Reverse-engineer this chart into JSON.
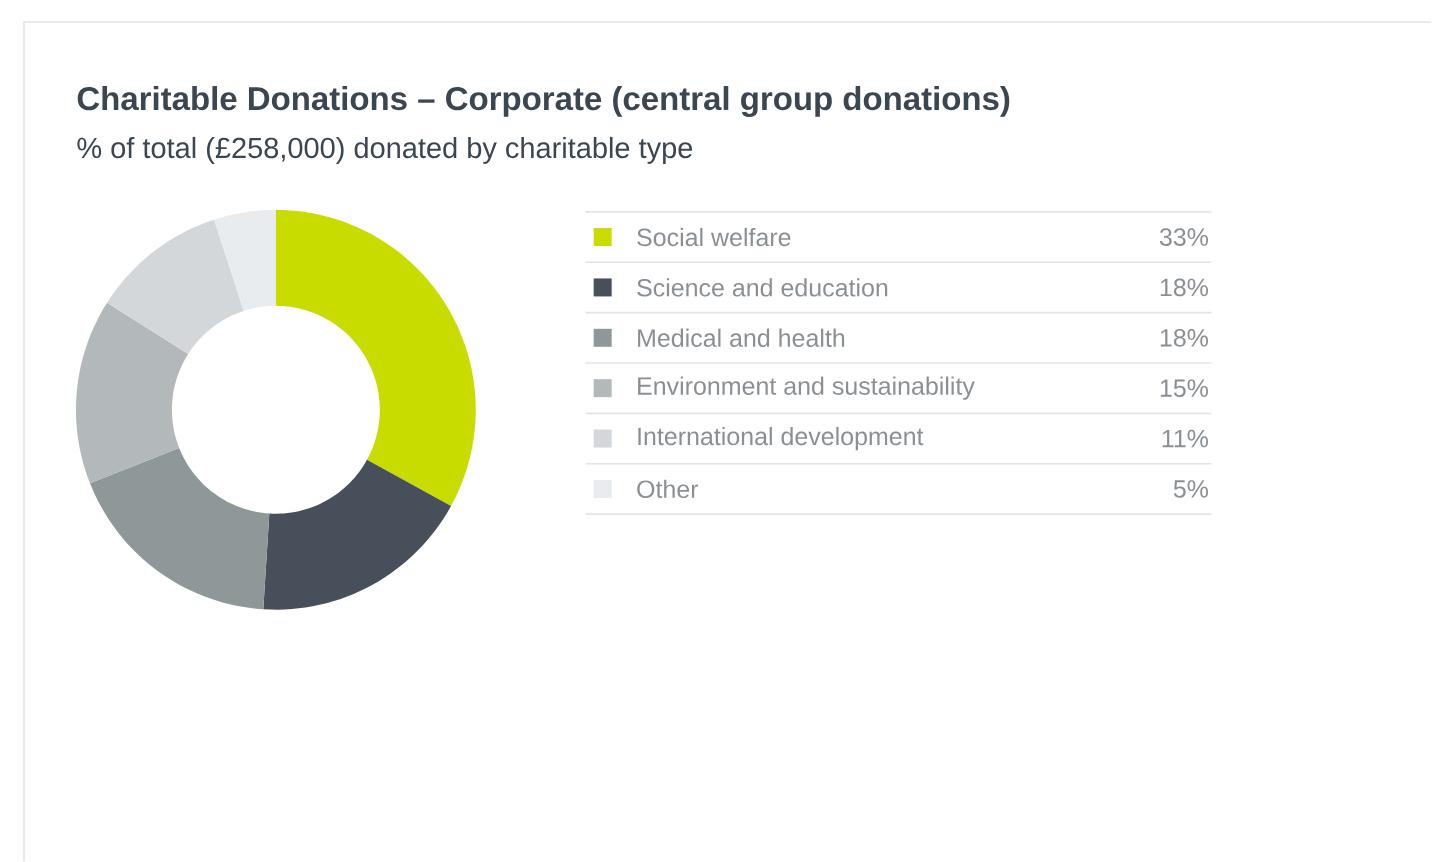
{
  "chart_data": {
    "type": "donut",
    "title": "Charitable Donations – Corporate (central group donations)",
    "subtitle": "% of total (£258,000) donated by charitable type",
    "categories": [
      "Social welfare",
      "Science and education",
      "Medical and health",
      "Environment and sustainability",
      "International development",
      "Other"
    ],
    "values": [
      33,
      18,
      18,
      15,
      11,
      5
    ],
    "value_labels": [
      "33%",
      "18%",
      "18%",
      "15%",
      "11%",
      "5%"
    ],
    "colors": [
      "#c8dc00",
      "#47505a",
      "#8e9899",
      "#b3b8ba",
      "#d3d7d9",
      "#e8ecee"
    ],
    "legend": "right"
  }
}
